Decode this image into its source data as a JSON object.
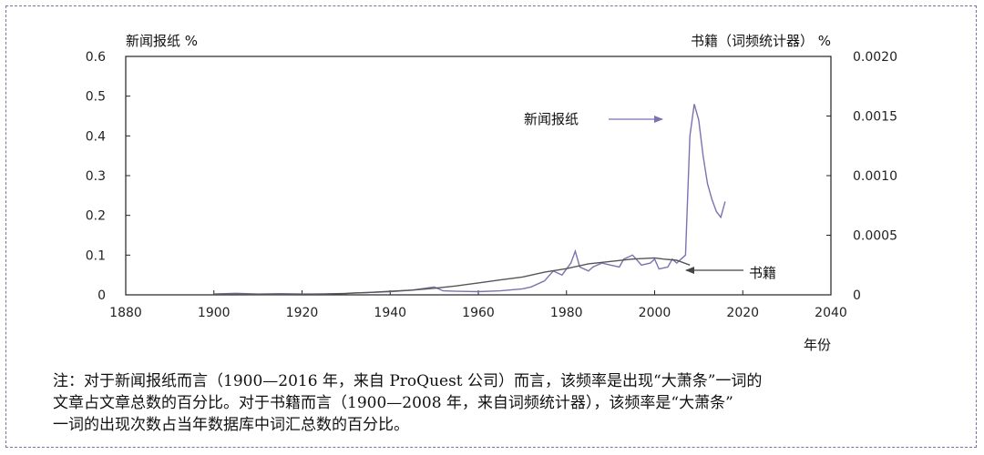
{
  "chart_data": {
    "type": "line",
    "left_axis_label": "新闻报纸 %",
    "right_axis_label": "书籍（词频统计器） %",
    "xlabel": "年份",
    "xlim": [
      1880,
      2040
    ],
    "x_ticks": [
      "1880",
      "1900",
      "1920",
      "1940",
      "1960",
      "1980",
      "2000",
      "2020",
      "2040"
    ],
    "ylim_left": [
      0,
      0.6
    ],
    "y_ticks_left": [
      "0",
      "0.1",
      "0.2",
      "0.3",
      "0.4",
      "0.5",
      "0.6"
    ],
    "ylim_right": [
      0,
      0.002
    ],
    "y_ticks_right": [
      "0",
      "0.0005",
      "0.0010",
      "0.0015",
      "0.0020"
    ],
    "annotations": [
      {
        "text": "新闻报纸",
        "series": "newspaper"
      },
      {
        "text": "书籍",
        "series": "books"
      }
    ],
    "series": [
      {
        "id": "newspaper",
        "axis": "left",
        "color": "#7b72b0",
        "x": [
          1900,
          1905,
          1910,
          1915,
          1920,
          1925,
          1930,
          1932,
          1935,
          1940,
          1945,
          1950,
          1952,
          1955,
          1960,
          1965,
          1970,
          1972,
          1975,
          1977,
          1979,
          1981,
          1982,
          1983,
          1985,
          1986,
          1988,
          1990,
          1992,
          1993,
          1995,
          1997,
          1999,
          2000,
          2001,
          2003,
          2004,
          2005,
          2006,
          2007,
          2008,
          2009,
          2010,
          2011,
          2012,
          2013,
          2014,
          2015,
          2016
        ],
        "y": [
          0.002,
          0.004,
          0.002,
          0.003,
          0.002,
          0.002,
          0.003,
          0.005,
          0.006,
          0.008,
          0.012,
          0.02,
          0.01,
          0.009,
          0.008,
          0.01,
          0.015,
          0.02,
          0.035,
          0.06,
          0.05,
          0.08,
          0.11,
          0.07,
          0.06,
          0.07,
          0.08,
          0.075,
          0.07,
          0.09,
          0.1,
          0.075,
          0.08,
          0.09,
          0.065,
          0.07,
          0.09,
          0.08,
          0.09,
          0.1,
          0.4,
          0.48,
          0.44,
          0.35,
          0.28,
          0.24,
          0.21,
          0.195,
          0.235
        ]
      },
      {
        "id": "books",
        "axis": "right",
        "color": "#555555",
        "x": [
          1900,
          1905,
          1910,
          1915,
          1920,
          1925,
          1930,
          1935,
          1940,
          1945,
          1950,
          1955,
          1960,
          1965,
          1970,
          1975,
          1980,
          1985,
          1990,
          1995,
          2000,
          2002,
          2005,
          2008
        ],
        "y": [
          5e-06,
          5e-06,
          4e-06,
          4e-06,
          5e-06,
          7e-06,
          1.2e-05,
          2e-05,
          3e-05,
          4e-05,
          5.5e-05,
          7.5e-05,
          0.0001,
          0.000125,
          0.00015,
          0.00019,
          0.00022,
          0.00026,
          0.00028,
          0.0003,
          0.00031,
          0.0003,
          0.00029,
          0.00025
        ]
      }
    ]
  },
  "note": {
    "line1": "注：对于新闻报纸而言（1900—2016 年，来自 ProQuest 公司）而言，该频率是出现“大萧条”一词的",
    "line2": "文章占文章总数的百分比。对于书籍而言（1900—2008 年，来自词频统计器），该频率是“大萧条”",
    "line3": "一词的出现次数占当年数据库中词汇总数的百分比。"
  }
}
